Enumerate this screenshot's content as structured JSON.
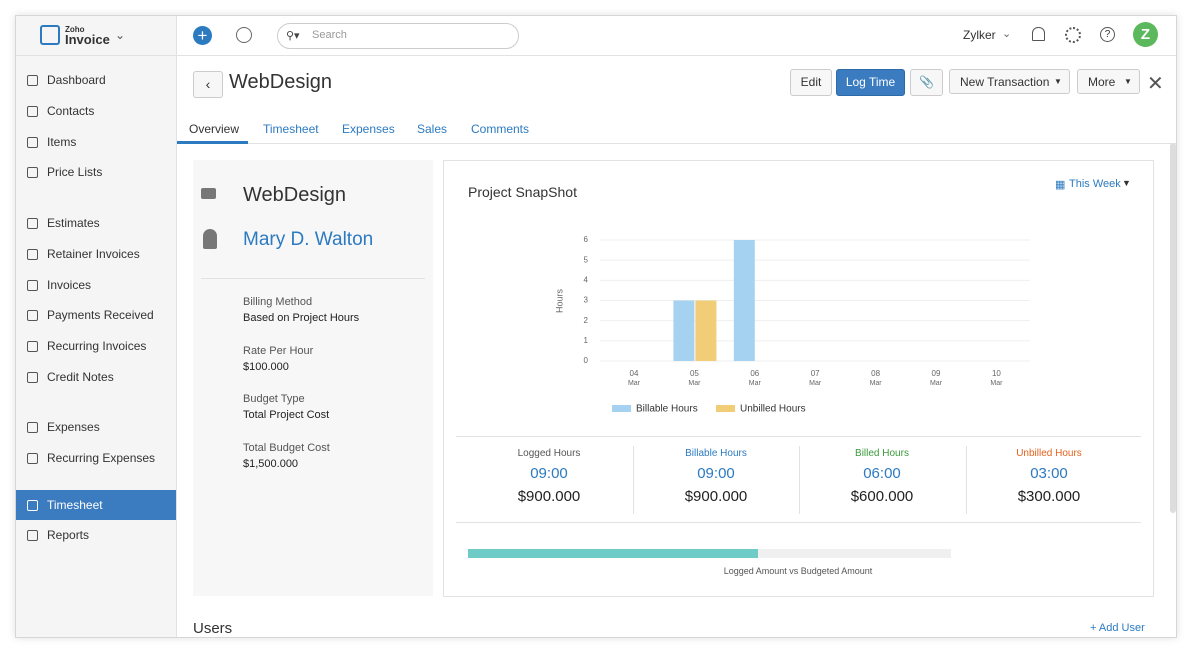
{
  "app": {
    "logo_small": "Zoho",
    "logo": "Invoice",
    "search_placeholder": "Search",
    "org": "Zylker",
    "avatar": "Z"
  },
  "sidebar": {
    "items": [
      "Dashboard",
      "Contacts",
      "Items",
      "Price Lists",
      "Estimates",
      "Retainer Invoices",
      "Invoices",
      "Payments Received",
      "Recurring Invoices",
      "Credit Notes",
      "Expenses",
      "Recurring Expenses",
      "Timesheet",
      "Reports"
    ],
    "active_item": 12
  },
  "project": {
    "title": "WebDesign",
    "buttons": [
      "Edit",
      "Log Time",
      "New Transaction",
      "More"
    ],
    "tabs": [
      "Overview",
      "Timesheet",
      "Expenses",
      "Sales",
      "Comments"
    ],
    "name": "WebDesign",
    "customer": "Mary D. Walton",
    "fields": [
      {
        "label": "Billing Method",
        "value": "Based on Project Hours"
      },
      {
        "label": "Rate Per Hour",
        "value": "$100.000"
      },
      {
        "label": "Budget Type",
        "value": "Total Project Cost"
      },
      {
        "label": "Total Budget Cost",
        "value": "$1,500.000"
      }
    ]
  },
  "snapshot": {
    "title": "Project SnapShot",
    "period": "This Week",
    "stats": [
      {
        "label": "Logged Hours",
        "hours": "09:00",
        "amount": "$900.000",
        "color": "#555555"
      },
      {
        "label": "Billable Hours",
        "hours": "09:00",
        "amount": "$900.000",
        "color": "#2c7ac0"
      },
      {
        "label": "Billed Hours",
        "hours": "06:00",
        "amount": "$600.000",
        "color": "#3a9a3a"
      },
      {
        "label": "Unbilled Hours",
        "hours": "03:00",
        "amount": "$300.000",
        "color": "#e2621b"
      }
    ],
    "progress": {
      "value": 60,
      "label": "Logged Amount vs Budgeted Amount",
      "color": "#6ecbc6"
    }
  },
  "users": {
    "title": "Users",
    "add": "+ Add User"
  },
  "chart_data": {
    "type": "bar",
    "y_label": "Hours",
    "categories": [
      "04",
      "05",
      "06",
      "07",
      "08",
      "09",
      "10"
    ],
    "category_months": [
      "Mar",
      "Mar",
      "Mar",
      "Mar",
      "Mar",
      "Mar",
      "Mar"
    ],
    "series": [
      {
        "name": "Billable Hours",
        "color": "#a6d2f1",
        "values": [
          0,
          3,
          6,
          0,
          0,
          0,
          0
        ]
      },
      {
        "name": "Unbilled Hours",
        "color": "#f1cd78",
        "values": [
          0,
          3,
          0,
          0,
          0,
          0,
          0
        ]
      }
    ],
    "ylim": [
      0,
      6
    ],
    "yticks": [
      0,
      1,
      2,
      3,
      4,
      5,
      6
    ],
    "grid": true
  }
}
